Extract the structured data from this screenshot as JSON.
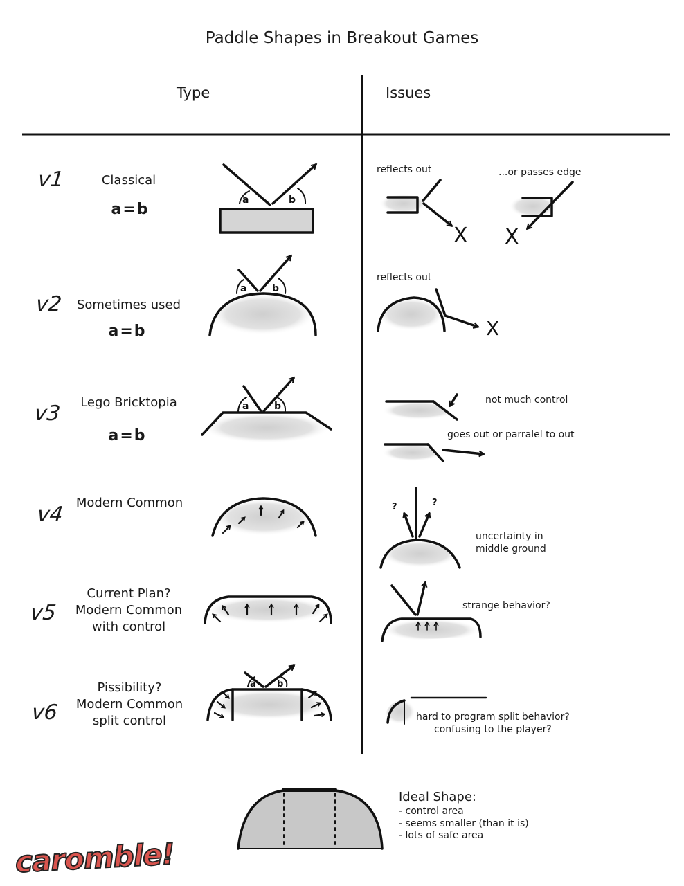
{
  "title": "Paddle Shapes in Breakout Games",
  "columns": {
    "type": "Type",
    "issues": "Issues"
  },
  "rows": [
    {
      "version": "v1",
      "name_lines": [
        "Classical"
      ],
      "equation": "a=b",
      "issues": [
        "reflects out",
        "...or passes edge"
      ]
    },
    {
      "version": "v2",
      "name_lines": [
        "Sometimes used"
      ],
      "equation": "a=b",
      "issues": [
        "reflects out"
      ]
    },
    {
      "version": "v3",
      "name_lines": [
        "Lego Bricktopia"
      ],
      "equation": "a=b",
      "issues": [
        "not much control",
        "goes out or parralel to out"
      ]
    },
    {
      "version": "v4",
      "name_lines": [
        "Modern Common"
      ],
      "equation": "",
      "issues": [
        "uncertainty in",
        "middle ground"
      ]
    },
    {
      "version": "v5",
      "name_lines": [
        "Current Plan?",
        "Modern Common",
        "with control"
      ],
      "equation": "",
      "issues": [
        "strange behavior?"
      ]
    },
    {
      "version": "v6",
      "name_lines": [
        "Pissibility?",
        "Modern Common",
        "split control"
      ],
      "equation": "",
      "issues": [
        "hard to program split behavior?",
        "confusing to the player?"
      ]
    }
  ],
  "angle_labels": {
    "a": "a",
    "b": "b"
  },
  "miss_mark": "X",
  "ideal": {
    "title": "Ideal Shape:",
    "items": [
      "- control area",
      "- seems smaller (than it is)",
      "- lots of safe area"
    ]
  },
  "logo": "caromble!"
}
